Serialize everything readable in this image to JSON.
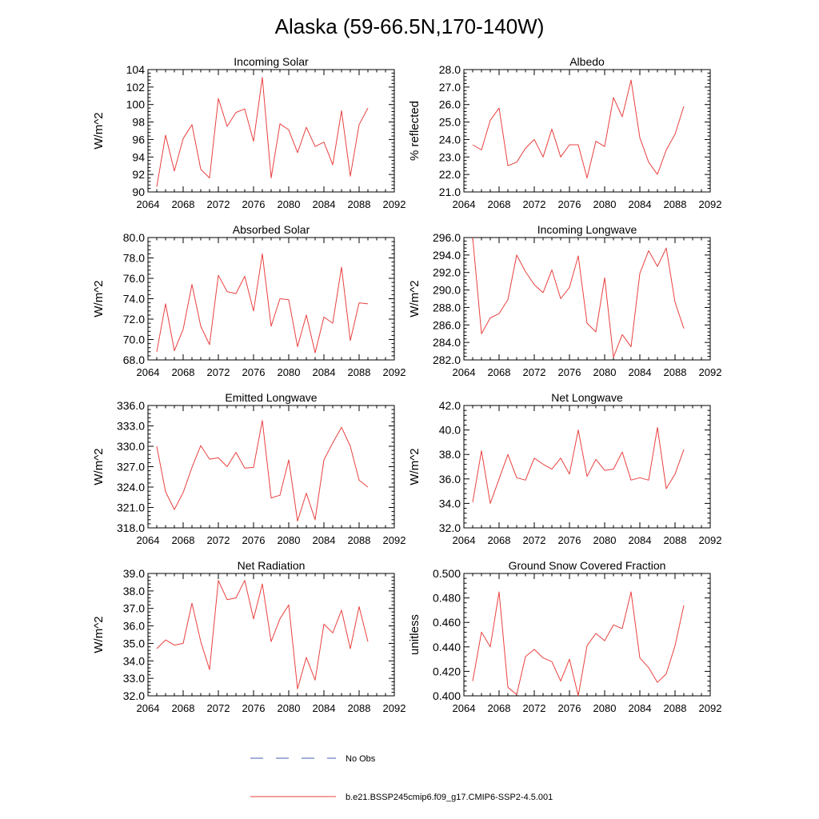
{
  "figure": {
    "title": "Alaska (59-66.5N,170-140W)",
    "legend": [
      {
        "label": "No Obs",
        "color": "#4a5fb0",
        "style": "dashed"
      },
      {
        "label": "b.e21.BSSP245cmip6.f09_g17.CMIP6-SSP2-4.5.001",
        "color": "#e8413f",
        "style": "solid"
      }
    ]
  },
  "chart_data": [
    {
      "type": "line",
      "title": "Incoming Solar",
      "ylabel": "W/m^2",
      "xlim": [
        2064,
        2092
      ],
      "ylim": [
        90,
        104
      ],
      "xticks": [
        2064,
        2068,
        2072,
        2076,
        2080,
        2084,
        2088,
        2092
      ],
      "yticks": [
        90,
        92,
        94,
        96,
        98,
        100,
        102,
        104
      ],
      "ytick_labels": [
        "90",
        "92",
        "94",
        "96",
        "98",
        "100",
        "102",
        "104"
      ],
      "series": [
        {
          "name": "b.e21.BSSP245cmip6.f09_g17.CMIP6-SSP2-4.5.001",
          "color": "#e8413f",
          "x": [
            2065,
            2066,
            2067,
            2068,
            2069,
            2070,
            2071,
            2072,
            2073,
            2074,
            2075,
            2076,
            2077,
            2078,
            2079,
            2080,
            2081,
            2082,
            2083,
            2084,
            2085,
            2086,
            2087,
            2088,
            2089
          ],
          "y": [
            90.6,
            96.5,
            92.4,
            96.1,
            97.7,
            92.6,
            91.6,
            100.7,
            97.5,
            99.1,
            99.5,
            95.8,
            103.1,
            91.6,
            97.8,
            97.1,
            94.5,
            97.4,
            95.2,
            95.7,
            93.1,
            99.3,
            91.8,
            97.7,
            99.6
          ]
        }
      ]
    },
    {
      "type": "line",
      "title": "Albedo",
      "ylabel": "% reflected",
      "xlim": [
        2064,
        2092
      ],
      "ylim": [
        21,
        28
      ],
      "xticks": [
        2064,
        2068,
        2072,
        2076,
        2080,
        2084,
        2088,
        2092
      ],
      "yticks": [
        21,
        22,
        23,
        24,
        25,
        26,
        27,
        28
      ],
      "ytick_labels": [
        "21.0",
        "22.0",
        "23.0",
        "24.0",
        "25.0",
        "26.0",
        "27.0",
        "28.0"
      ],
      "series": [
        {
          "name": "b.e21.BSSP245cmip6.f09_g17.CMIP6-SSP2-4.5.001",
          "color": "#e8413f",
          "x": [
            2065,
            2066,
            2067,
            2068,
            2069,
            2070,
            2071,
            2072,
            2073,
            2074,
            2075,
            2076,
            2077,
            2078,
            2079,
            2080,
            2081,
            2082,
            2083,
            2084,
            2085,
            2086,
            2087,
            2088,
            2089
          ],
          "y": [
            23.7,
            23.4,
            25.1,
            25.8,
            22.5,
            22.7,
            23.5,
            24.0,
            23.0,
            24.6,
            23.0,
            23.7,
            23.7,
            21.8,
            23.9,
            23.6,
            26.4,
            25.3,
            27.4,
            24.1,
            22.7,
            22.0,
            23.4,
            24.3,
            25.9
          ]
        }
      ]
    },
    {
      "type": "line",
      "title": "Absorbed Solar",
      "ylabel": "W/m^2",
      "xlim": [
        2064,
        2092
      ],
      "ylim": [
        68,
        80
      ],
      "xticks": [
        2064,
        2068,
        2072,
        2076,
        2080,
        2084,
        2088,
        2092
      ],
      "yticks": [
        68,
        70,
        72,
        74,
        76,
        78,
        80
      ],
      "ytick_labels": [
        "68.0",
        "70.0",
        "72.0",
        "74.0",
        "76.0",
        "78.0",
        "80.0"
      ],
      "series": [
        {
          "name": "b.e21.BSSP245cmip6.f09_g17.CMIP6-SSP2-4.5.001",
          "color": "#e8413f",
          "x": [
            2065,
            2066,
            2067,
            2068,
            2069,
            2070,
            2071,
            2072,
            2073,
            2074,
            2075,
            2076,
            2077,
            2078,
            2079,
            2080,
            2081,
            2082,
            2083,
            2084,
            2085,
            2086,
            2087,
            2088,
            2089
          ],
          "y": [
            68.8,
            73.5,
            68.9,
            71.0,
            75.4,
            71.3,
            69.5,
            76.3,
            74.7,
            74.5,
            76.2,
            72.8,
            78.4,
            71.3,
            74.0,
            73.9,
            69.3,
            72.4,
            68.7,
            72.2,
            71.6,
            77.1,
            69.9,
            73.6,
            73.5
          ]
        }
      ]
    },
    {
      "type": "line",
      "title": "Incoming Longwave",
      "ylabel": "W/m^2",
      "xlim": [
        2064,
        2092
      ],
      "ylim": [
        282,
        296
      ],
      "xticks": [
        2064,
        2068,
        2072,
        2076,
        2080,
        2084,
        2088,
        2092
      ],
      "yticks": [
        282,
        284,
        286,
        288,
        290,
        292,
        294,
        296
      ],
      "ytick_labels": [
        "282.0",
        "284.0",
        "286.0",
        "288.0",
        "290.0",
        "292.0",
        "294.0",
        "296.0"
      ],
      "series": [
        {
          "name": "b.e21.BSSP245cmip6.f09_g17.CMIP6-SSP2-4.5.001",
          "color": "#e8413f",
          "x": [
            2065,
            2066,
            2067,
            2068,
            2069,
            2070,
            2071,
            2072,
            2073,
            2074,
            2075,
            2076,
            2077,
            2078,
            2079,
            2080,
            2081,
            2082,
            2083,
            2084,
            2085,
            2086,
            2087,
            2088,
            2089
          ],
          "y": [
            296.0,
            285.0,
            286.8,
            287.3,
            288.9,
            294.0,
            292.1,
            290.6,
            289.7,
            292.3,
            289.0,
            290.3,
            293.9,
            286.2,
            285.2,
            291.4,
            282.3,
            284.9,
            283.5,
            291.9,
            294.5,
            292.7,
            294.8,
            288.6,
            285.6
          ]
        }
      ]
    },
    {
      "type": "line",
      "title": "Emitted Longwave",
      "ylabel": "W/m^2",
      "xlim": [
        2064,
        2092
      ],
      "ylim": [
        318,
        336
      ],
      "xticks": [
        2064,
        2068,
        2072,
        2076,
        2080,
        2084,
        2088,
        2092
      ],
      "yticks": [
        318,
        321,
        324,
        327,
        330,
        333,
        336
      ],
      "ytick_labels": [
        "318.0",
        "321.0",
        "324.0",
        "327.0",
        "330.0",
        "333.0",
        "336.0"
      ],
      "series": [
        {
          "name": "b.e21.BSSP245cmip6.f09_g17.CMIP6-SSP2-4.5.001",
          "color": "#e8413f",
          "x": [
            2065,
            2066,
            2067,
            2068,
            2069,
            2070,
            2071,
            2072,
            2073,
            2074,
            2075,
            2076,
            2077,
            2078,
            2079,
            2080,
            2081,
            2082,
            2083,
            2084,
            2085,
            2086,
            2087,
            2088,
            2089
          ],
          "y": [
            330.0,
            323.3,
            320.7,
            323.2,
            326.9,
            330.1,
            328.1,
            328.3,
            327.0,
            329.1,
            326.8,
            326.9,
            333.8,
            322.4,
            322.8,
            328.0,
            319.0,
            323.1,
            319.2,
            328.0,
            330.5,
            332.8,
            330.0,
            325.0,
            324.0
          ]
        }
      ]
    },
    {
      "type": "line",
      "title": "Net Longwave",
      "ylabel": "W/m^2",
      "xlim": [
        2064,
        2092
      ],
      "ylim": [
        32,
        42
      ],
      "xticks": [
        2064,
        2068,
        2072,
        2076,
        2080,
        2084,
        2088,
        2092
      ],
      "yticks": [
        32,
        34,
        36,
        38,
        40,
        42
      ],
      "ytick_labels": [
        "32.0",
        "34.0",
        "36.0",
        "38.0",
        "40.0",
        "42.0"
      ],
      "series": [
        {
          "name": "b.e21.BSSP245cmip6.f09_g17.CMIP6-SSP2-4.5.001",
          "color": "#e8413f",
          "x": [
            2065,
            2066,
            2067,
            2068,
            2069,
            2070,
            2071,
            2072,
            2073,
            2074,
            2075,
            2076,
            2077,
            2078,
            2079,
            2080,
            2081,
            2082,
            2083,
            2084,
            2085,
            2086,
            2087,
            2088,
            2089
          ],
          "y": [
            34.1,
            38.3,
            34.0,
            36.0,
            38.0,
            36.1,
            35.9,
            37.7,
            37.2,
            36.8,
            37.7,
            36.4,
            40.0,
            36.2,
            37.6,
            36.7,
            36.8,
            38.2,
            35.9,
            36.1,
            35.9,
            40.2,
            35.2,
            36.4,
            38.4
          ]
        }
      ]
    },
    {
      "type": "line",
      "title": "Net Radiation",
      "ylabel": "W/m^2",
      "xlim": [
        2064,
        2092
      ],
      "ylim": [
        32,
        39
      ],
      "xticks": [
        2064,
        2068,
        2072,
        2076,
        2080,
        2084,
        2088,
        2092
      ],
      "yticks": [
        32,
        33,
        34,
        35,
        36,
        37,
        38,
        39
      ],
      "ytick_labels": [
        "32.0",
        "33.0",
        "34.0",
        "35.0",
        "36.0",
        "37.0",
        "38.0",
        "39.0"
      ],
      "series": [
        {
          "name": "b.e21.BSSP245cmip6.f09_g17.CMIP6-SSP2-4.5.001",
          "color": "#e8413f",
          "x": [
            2065,
            2066,
            2067,
            2068,
            2069,
            2070,
            2071,
            2072,
            2073,
            2074,
            2075,
            2076,
            2077,
            2078,
            2079,
            2080,
            2081,
            2082,
            2083,
            2084,
            2085,
            2086,
            2087,
            2088,
            2089
          ],
          "y": [
            34.7,
            35.2,
            34.9,
            35.0,
            37.3,
            35.1,
            33.5,
            38.6,
            37.5,
            37.6,
            38.6,
            36.4,
            38.4,
            35.1,
            36.4,
            37.2,
            32.4,
            34.2,
            32.9,
            36.1,
            35.6,
            36.9,
            34.7,
            37.1,
            35.1
          ]
        }
      ]
    },
    {
      "type": "line",
      "title": "Ground Snow Covered Fraction",
      "ylabel": "unitless",
      "xlim": [
        2064,
        2092
      ],
      "ylim": [
        0.4,
        0.5
      ],
      "xticks": [
        2064,
        2068,
        2072,
        2076,
        2080,
        2084,
        2088,
        2092
      ],
      "yticks": [
        0.4,
        0.42,
        0.44,
        0.46,
        0.48,
        0.5
      ],
      "ytick_labels": [
        "0.400",
        "0.420",
        "0.440",
        "0.460",
        "0.480",
        "0.500"
      ],
      "series": [
        {
          "name": "b.e21.BSSP245cmip6.f09_g17.CMIP6-SSP2-4.5.001",
          "color": "#e8413f",
          "x": [
            2065,
            2066,
            2067,
            2068,
            2069,
            2070,
            2071,
            2072,
            2073,
            2074,
            2075,
            2076,
            2077,
            2078,
            2079,
            2080,
            2081,
            2082,
            2083,
            2084,
            2085,
            2086,
            2087,
            2088,
            2089
          ],
          "y": [
            0.412,
            0.452,
            0.44,
            0.485,
            0.407,
            0.401,
            0.432,
            0.438,
            0.431,
            0.428,
            0.412,
            0.43,
            0.4,
            0.441,
            0.451,
            0.445,
            0.458,
            0.455,
            0.485,
            0.431,
            0.423,
            0.411,
            0.418,
            0.441,
            0.474
          ]
        }
      ]
    }
  ]
}
